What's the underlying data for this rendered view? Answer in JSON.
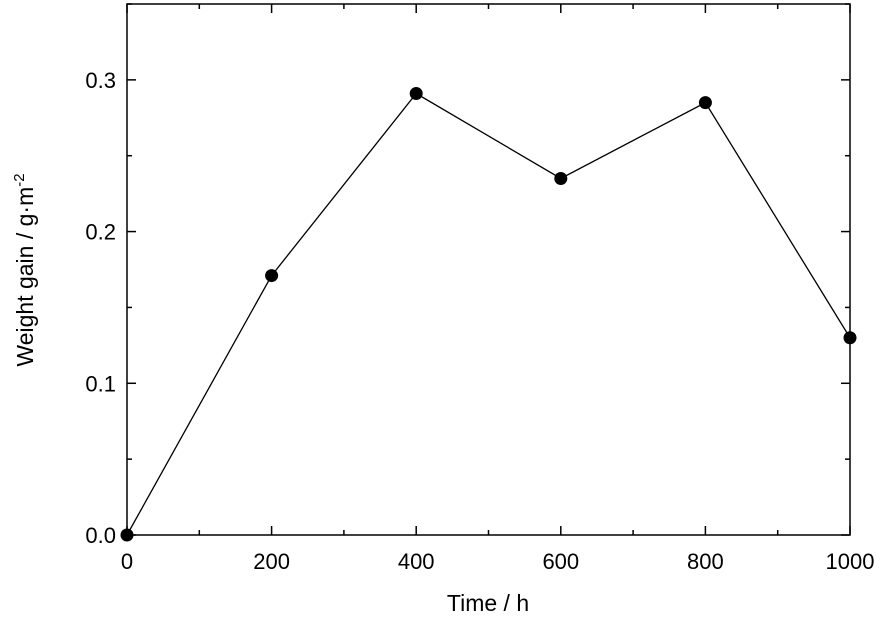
{
  "chart_data": {
    "type": "line",
    "xlabel": "Time / h",
    "ylabel": "Weight gain / g·m",
    "ylabel_superscript": "-2",
    "xlim": [
      0,
      1000
    ],
    "ylim": [
      0,
      0.35
    ],
    "x_ticks": [
      0,
      200,
      400,
      600,
      800,
      1000
    ],
    "x_tick_labels": [
      "0",
      "200",
      "400",
      "600",
      "800",
      "1000"
    ],
    "y_ticks": [
      0.0,
      0.1,
      0.2,
      0.3
    ],
    "y_tick_labels": [
      "0.0",
      "0.1",
      "0.2",
      "0.3"
    ],
    "grid": false,
    "series": [
      {
        "x": [
          0,
          200,
          400,
          600,
          800,
          1000
        ],
        "y": [
          0.0,
          0.171,
          0.291,
          0.235,
          0.285,
          0.13
        ]
      }
    ],
    "colors": {
      "line": "#000000",
      "marker": "#000000",
      "frame": "#000000"
    }
  }
}
